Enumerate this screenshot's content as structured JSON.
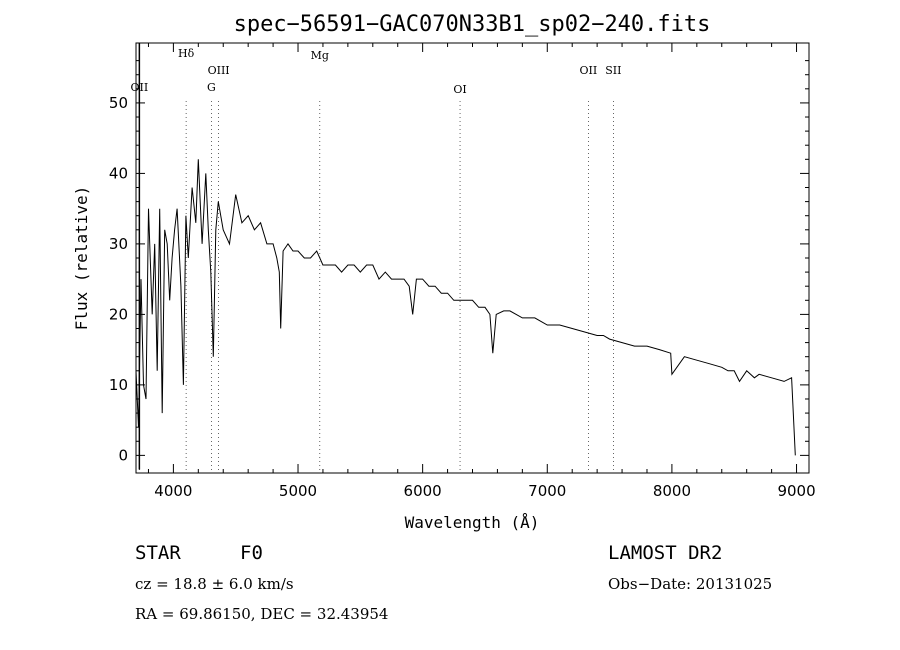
{
  "chart_data": {
    "type": "line",
    "title": "spec−56591−GAC070N33B1_sp02−240.fits",
    "xlabel": "Wavelength (Å)",
    "ylabel": "Flux (relative)",
    "xlim": [
      3700,
      9100
    ],
    "ylim": [
      -2.5,
      58.5
    ],
    "xticks": [
      4000,
      5000,
      6000,
      7000,
      8000,
      9000
    ],
    "yticks": [
      0,
      10,
      20,
      30,
      40,
      50
    ],
    "grid": false,
    "series": [
      {
        "name": "spectrum",
        "x": [
          3700,
          3720,
          3740,
          3760,
          3780,
          3800,
          3830,
          3850,
          3870,
          3890,
          3910,
          3930,
          3950,
          3970,
          3990,
          4010,
          4030,
          4060,
          4080,
          4100,
          4120,
          4150,
          4180,
          4200,
          4230,
          4260,
          4280,
          4300,
          4320,
          4340,
          4360,
          4400,
          4450,
          4500,
          4550,
          4600,
          4650,
          4700,
          4750,
          4800,
          4830,
          4850,
          4861,
          4880,
          4920,
          4960,
          5000,
          5050,
          5100,
          5150,
          5200,
          5250,
          5300,
          5350,
          5400,
          5450,
          5500,
          5550,
          5600,
          5650,
          5700,
          5750,
          5800,
          5850,
          5892,
          5920,
          5950,
          6000,
          6050,
          6100,
          6150,
          6200,
          6250,
          6300,
          6350,
          6400,
          6450,
          6500,
          6540,
          6563,
          6590,
          6650,
          6700,
          6800,
          6900,
          7000,
          7100,
          7200,
          7300,
          7400,
          7450,
          7500,
          7600,
          7700,
          7800,
          7900,
          7990,
          8000,
          8100,
          8200,
          8300,
          8400,
          8450,
          8500,
          8542,
          8600,
          8662,
          8700,
          8800,
          8900,
          8960,
          8990
        ],
        "y": [
          12,
          4,
          25,
          10,
          8,
          35,
          20,
          30,
          12,
          35,
          6,
          32,
          30,
          22,
          28,
          32,
          35,
          24,
          10,
          34,
          28,
          38,
          33,
          42,
          30,
          40,
          32,
          26,
          14,
          32,
          36,
          32,
          30,
          37,
          33,
          34,
          32,
          33,
          30,
          30,
          28,
          26,
          18,
          29,
          30,
          29,
          29,
          28,
          28,
          29,
          27,
          27,
          27,
          26,
          27,
          27,
          26,
          27,
          27,
          25,
          26,
          25,
          25,
          25,
          24,
          20,
          25,
          25,
          24,
          24,
          23,
          23,
          22,
          22,
          22,
          22,
          21,
          21,
          20,
          14.5,
          20,
          20.5,
          20.5,
          19.5,
          19.5,
          18.5,
          18.5,
          18,
          17.5,
          17,
          17,
          16.5,
          16,
          15.5,
          15.5,
          15,
          14.5,
          11.5,
          14,
          13.5,
          13,
          12.5,
          12,
          12,
          10.5,
          12,
          11,
          11.5,
          11,
          10.5,
          11,
          0
        ]
      }
    ],
    "lines": [
      {
        "label": "OII",
        "wavelength": 3727
      },
      {
        "label": "Hδ",
        "wavelength": 4102
      },
      {
        "label": "G",
        "wavelength": 4305
      },
      {
        "label": "OIII",
        "wavelength": 4363
      },
      {
        "label": "Mg",
        "wavelength": 5175
      },
      {
        "label": "OI",
        "wavelength": 6300
      },
      {
        "label": "OII",
        "wavelength": 7330
      },
      {
        "label": "SII",
        "wavelength": 7530
      }
    ]
  },
  "info": {
    "object_class": "STAR",
    "subclass": "F0",
    "survey": "LAMOST DR2",
    "redshift": "cz = 18.8 ± 6.0 km/s",
    "obs_date": "Obs−Date: 20131025",
    "coords": "RA =  69.86150, DEC =  32.43954"
  }
}
